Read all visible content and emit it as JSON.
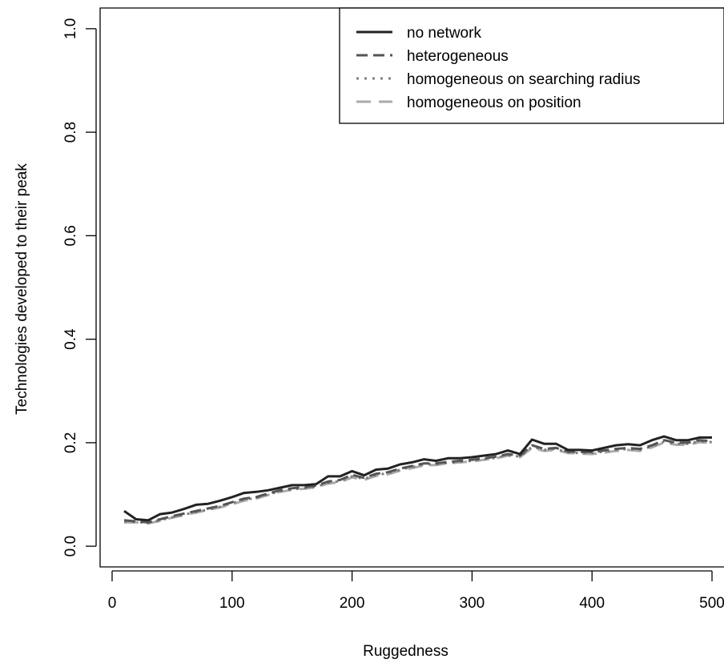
{
  "chart_data": {
    "type": "line",
    "title": "",
    "xlabel": "Ruggedness",
    "ylabel": "Technologies developed to their peak",
    "xlim": [
      -10,
      510
    ],
    "ylim": [
      -0.04,
      1.04
    ],
    "x_ticks": [
      0,
      100,
      200,
      300,
      400,
      500
    ],
    "x_tick_labels": [
      "0",
      "100",
      "200",
      "300",
      "400",
      "500"
    ],
    "y_ticks": [
      0.0,
      0.2,
      0.4,
      0.6,
      0.8,
      1.0
    ],
    "y_tick_labels": [
      "0.0",
      "0.2",
      "0.4",
      "0.6",
      "0.8",
      "1.0"
    ],
    "grid": false,
    "legend_position": "top-right",
    "x": [
      10,
      20,
      30,
      40,
      50,
      60,
      70,
      80,
      90,
      100,
      110,
      120,
      130,
      140,
      150,
      160,
      170,
      180,
      190,
      200,
      210,
      220,
      230,
      240,
      250,
      260,
      270,
      280,
      290,
      300,
      310,
      320,
      330,
      340,
      350,
      360,
      370,
      380,
      390,
      400,
      410,
      420,
      430,
      440,
      450,
      460,
      470,
      480,
      490,
      500
    ],
    "series": [
      {
        "name": "no network",
        "style": "solid",
        "color": "#222222",
        "values": [
          0.068,
          0.052,
          0.05,
          0.062,
          0.065,
          0.072,
          0.08,
          0.082,
          0.088,
          0.095,
          0.103,
          0.105,
          0.108,
          0.113,
          0.118,
          0.118,
          0.12,
          0.135,
          0.135,
          0.145,
          0.137,
          0.148,
          0.15,
          0.158,
          0.162,
          0.168,
          0.165,
          0.17,
          0.17,
          0.172,
          0.175,
          0.178,
          0.185,
          0.178,
          0.206,
          0.198,
          0.198,
          0.186,
          0.186,
          0.185,
          0.19,
          0.195,
          0.197,
          0.195,
          0.205,
          0.212,
          0.205,
          0.205,
          0.21,
          0.21
        ]
      },
      {
        "name": "heterogeneous",
        "style": "dashed",
        "color": "#555555",
        "values": [
          0.05,
          0.048,
          0.046,
          0.052,
          0.058,
          0.063,
          0.068,
          0.073,
          0.078,
          0.085,
          0.092,
          0.095,
          0.102,
          0.108,
          0.112,
          0.114,
          0.117,
          0.125,
          0.128,
          0.138,
          0.132,
          0.14,
          0.143,
          0.15,
          0.155,
          0.16,
          0.16,
          0.163,
          0.165,
          0.167,
          0.17,
          0.173,
          0.178,
          0.175,
          0.195,
          0.188,
          0.19,
          0.183,
          0.182,
          0.182,
          0.185,
          0.188,
          0.19,
          0.188,
          0.195,
          0.205,
          0.2,
          0.2,
          0.205,
          0.203
        ]
      },
      {
        "name": "homogeneous on searching radius",
        "style": "dotted",
        "color": "#808080",
        "values": [
          0.048,
          0.047,
          0.045,
          0.05,
          0.056,
          0.061,
          0.066,
          0.071,
          0.076,
          0.083,
          0.09,
          0.093,
          0.1,
          0.106,
          0.11,
          0.112,
          0.115,
          0.122,
          0.126,
          0.135,
          0.13,
          0.138,
          0.141,
          0.148,
          0.153,
          0.158,
          0.158,
          0.161,
          0.163,
          0.165,
          0.168,
          0.171,
          0.176,
          0.173,
          0.192,
          0.186,
          0.188,
          0.181,
          0.18,
          0.18,
          0.183,
          0.186,
          0.188,
          0.186,
          0.193,
          0.202,
          0.198,
          0.198,
          0.203,
          0.201
        ]
      },
      {
        "name": "homogeneous on position",
        "style": "longdash",
        "color": "#aaaaaa",
        "values": [
          0.046,
          0.046,
          0.044,
          0.049,
          0.055,
          0.06,
          0.065,
          0.07,
          0.075,
          0.081,
          0.088,
          0.092,
          0.099,
          0.105,
          0.109,
          0.111,
          0.114,
          0.121,
          0.124,
          0.133,
          0.128,
          0.136,
          0.139,
          0.146,
          0.151,
          0.156,
          0.157,
          0.16,
          0.162,
          0.164,
          0.167,
          0.17,
          0.175,
          0.172,
          0.19,
          0.184,
          0.186,
          0.18,
          0.179,
          0.178,
          0.181,
          0.184,
          0.186,
          0.184,
          0.191,
          0.2,
          0.196,
          0.196,
          0.201,
          0.199
        ]
      }
    ]
  }
}
